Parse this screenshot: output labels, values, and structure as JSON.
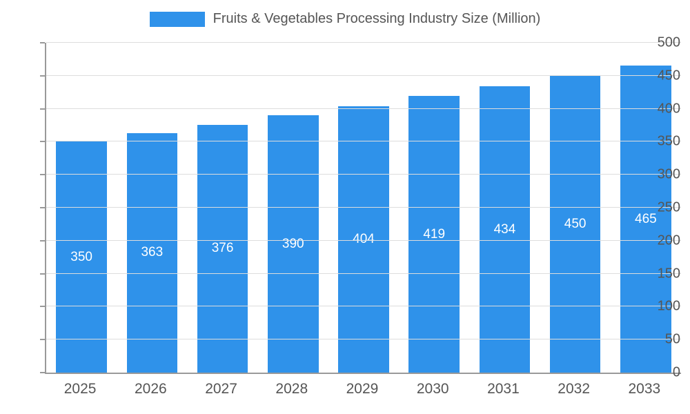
{
  "chart_data": {
    "type": "bar",
    "title": "Fruits & Vegetables Processing Industry Size (Million)",
    "categories": [
      "2025",
      "2026",
      "2027",
      "2028",
      "2029",
      "2030",
      "2031",
      "2032",
      "2033"
    ],
    "values": [
      350,
      363,
      376,
      390,
      404,
      419,
      434,
      450,
      465
    ],
    "xlabel": "",
    "ylabel": "",
    "ylim": [
      0,
      500
    ],
    "ytick_step": 50,
    "y_tick_labels": [
      "0",
      "50",
      "100",
      "150",
      "200",
      "250",
      "300",
      "350",
      "400",
      "450",
      "500"
    ],
    "grid": true,
    "legend_position": "top",
    "bar_color": "#2F92EA",
    "value_label_color": "#ffffff",
    "axis_text_color": "#555555",
    "gridline_color": "#dddddd",
    "axis_line_color": "#999999"
  }
}
